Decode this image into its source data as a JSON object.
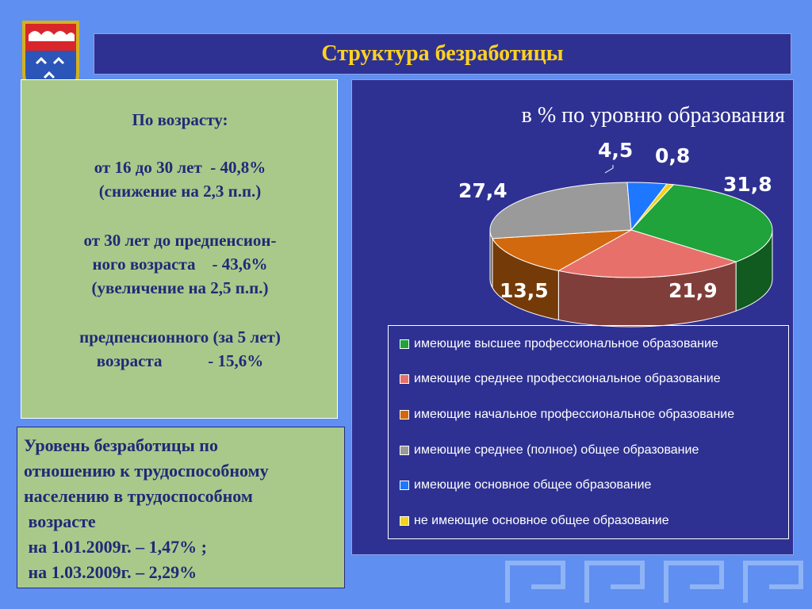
{
  "title": "Структура безработицы",
  "age_panel": {
    "lines": [
      "По возрасту:",
      "от 16 до 30 лет  - 40,8%",
      "(снижение на 2,3 п.п.)",
      "от 30 лет до предпенсион-",
      "ного возраста    - 43,6%",
      "(увеличение на 2,5 п.п.)",
      "предпенсионного (за 5 лет)",
      "возраста           - 15,6%"
    ]
  },
  "rate_panel": {
    "lines": [
      "Уровень безработицы по",
      "отношению к трудоспособному",
      "населению в трудоспособном",
      " возрасте",
      " на 1.01.2009г. – 1,47% ;",
      " на 1.03.2009г. – 2,29%"
    ]
  },
  "chart_data": {
    "type": "pie",
    "title": "в % по уровню образования",
    "slices": [
      {
        "label": "имеющие высшее профессиональное образование",
        "value": 31.8,
        "value_label": "31,8",
        "color": "#1fa33a"
      },
      {
        "label": "имеющие среднее профессиональное образование",
        "value": 21.9,
        "value_label": "21,9",
        "color": "#e8706a"
      },
      {
        "label": "имеющие начальное профессиональное образование",
        "value": 13.5,
        "value_label": "13,5",
        "color": "#d2690e"
      },
      {
        "label": "имеющие среднее (полное) общее образование",
        "value": 27.4,
        "value_label": "27,4",
        "color": "#9a9a9a"
      },
      {
        "label": "имеющие основное общее образование",
        "value": 4.5,
        "value_label": "4,5",
        "color": "#1e78ff"
      },
      {
        "label": "не имеющие основное общее образование",
        "value": 0.8,
        "value_label": "0,8",
        "color": "#f2d21e"
      }
    ],
    "legend_position": "bottom"
  }
}
